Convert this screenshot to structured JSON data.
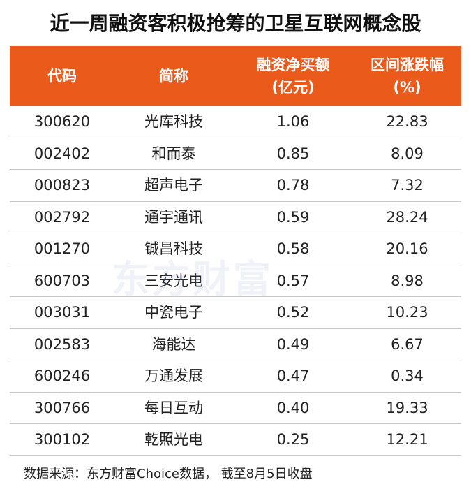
{
  "title": "近一周融资客积极抢筹的卫星互联网概念股",
  "table": {
    "header": [
      [
        "代码"
      ],
      [
        "简称"
      ],
      [
        "融资净买额",
        "(亿元)"
      ],
      [
        "区间涨跌幅",
        "(%)"
      ]
    ],
    "rows": [
      [
        "300620",
        "光库科技",
        "1.06",
        "22.83"
      ],
      [
        "002402",
        "和而泰",
        "0.85",
        "8.09"
      ],
      [
        "000823",
        "超声电子",
        "0.78",
        "7.32"
      ],
      [
        "002792",
        "通宇通讯",
        "0.59",
        "28.24"
      ],
      [
        "001270",
        "铖昌科技",
        "0.58",
        "20.16"
      ],
      [
        "600703",
        "三安光电",
        "0.57",
        "8.98"
      ],
      [
        "003031",
        "中瓷电子",
        "0.52",
        "10.23"
      ],
      [
        "002583",
        "海能达",
        "0.49",
        "6.67"
      ],
      [
        "600246",
        "万通发展",
        "0.47",
        "0.34"
      ],
      [
        "300766",
        "每日互动",
        "0.40",
        "19.33"
      ],
      [
        "300102",
        "乾照光电",
        "0.25",
        "12.21"
      ]
    ]
  },
  "watermark": "东方财富",
  "footer": "数据来源：东方财富Choice数据， 截至8月5日收盘"
}
